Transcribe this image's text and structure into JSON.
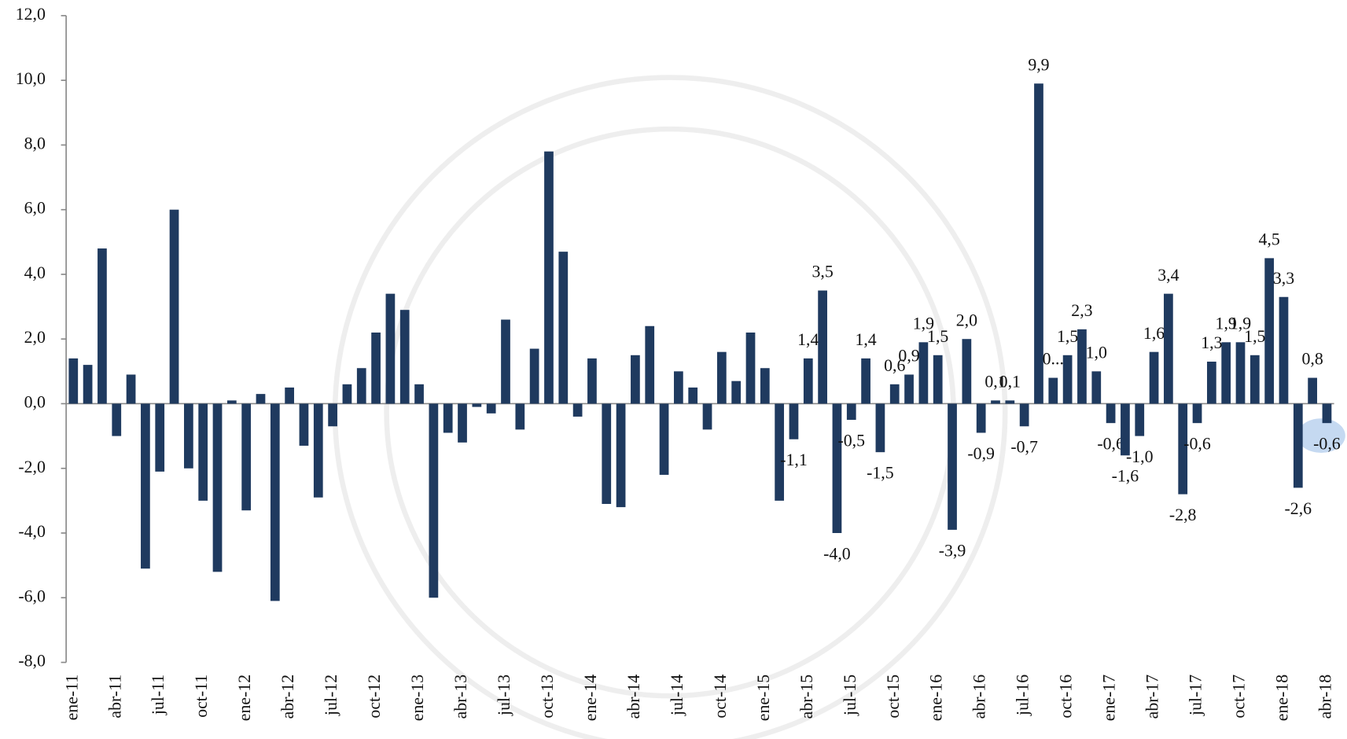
{
  "chart_data": {
    "type": "bar",
    "color": "#1f3a5f",
    "categories": [
      "ene-11",
      null,
      null,
      "abr-11",
      null,
      null,
      "jul-11",
      null,
      null,
      "oct-11",
      null,
      null,
      "ene-12",
      null,
      null,
      "abr-12",
      null,
      null,
      "jul-12",
      null,
      null,
      "oct-12",
      null,
      null,
      "ene-13",
      null,
      null,
      "abr-13",
      null,
      null,
      "jul-13",
      null,
      null,
      "oct-13",
      null,
      null,
      "ene-14",
      null,
      null,
      "abr-14",
      null,
      null,
      "jul-14",
      null,
      null,
      "oct-14",
      null,
      null,
      "ene-15",
      null,
      null,
      "abr-15",
      null,
      null,
      "jul-15",
      null,
      null,
      "oct-15",
      null,
      null,
      "ene-16",
      null,
      null,
      "abr-16",
      null,
      null,
      "jul-16",
      null,
      null,
      "oct-16",
      null,
      null,
      "ene-17",
      null,
      null,
      "abr-17",
      null,
      null,
      "jul-17",
      null,
      null,
      "oct-17",
      null,
      null,
      "ene-18",
      null,
      null,
      "abr-18"
    ],
    "values": [
      1.4,
      1.2,
      4.8,
      -1.0,
      0.9,
      -5.1,
      -2.1,
      6.0,
      -2.0,
      -3.0,
      -5.2,
      0.1,
      -3.3,
      0.3,
      -6.1,
      0.5,
      -1.3,
      -2.9,
      -0.7,
      0.6,
      1.1,
      2.2,
      3.4,
      2.9,
      0.6,
      -6.0,
      -0.9,
      -1.2,
      -0.1,
      -0.3,
      2.6,
      -0.8,
      1.7,
      7.8,
      4.7,
      -0.4,
      1.4,
      -3.1,
      -3.2,
      1.5,
      2.4,
      -2.2,
      1.0,
      0.5,
      -0.8,
      1.6,
      0.7,
      2.2,
      1.1,
      -3.0,
      -1.1,
      1.4,
      3.5,
      -4.0,
      -0.5,
      1.4,
      -1.5,
      0.6,
      0.9,
      1.9,
      1.5,
      -3.9,
      2.0,
      -0.9,
      0.1,
      0.1,
      -0.7,
      9.9,
      0.8,
      1.5,
      2.3,
      1.0,
      -0.6,
      -1.6,
      -1.0,
      1.6,
      3.4,
      -2.8,
      -0.6,
      1.3,
      1.9,
      1.9,
      1.5,
      4.5,
      3.3,
      -2.6,
      0.8,
      -0.6
    ],
    "value_labels": [
      null,
      null,
      null,
      null,
      null,
      null,
      null,
      null,
      null,
      null,
      null,
      null,
      null,
      null,
      null,
      null,
      null,
      null,
      null,
      null,
      null,
      null,
      null,
      null,
      null,
      null,
      null,
      null,
      null,
      null,
      null,
      null,
      null,
      null,
      null,
      null,
      null,
      null,
      null,
      null,
      null,
      null,
      null,
      null,
      null,
      null,
      null,
      null,
      null,
      null,
      "-1,1",
      "1,4",
      "3,5",
      "-4,0",
      "-0,5",
      "1,4",
      "-1,5",
      "0,6",
      "0,9",
      "1,9",
      "1,5",
      "-3,9",
      "2,0",
      "-0,9",
      "0,1",
      "0,1",
      "-0,7",
      "9,9",
      "0...",
      "1,5",
      "2,3",
      "1,0",
      "-0,6",
      "-1,6",
      "-1,0",
      "1,6",
      "3,4",
      "-2,8",
      "-0,6",
      "1,3",
      "1,9",
      "1,9",
      "1,5",
      "4,5",
      "3,3",
      "-2,6",
      "0,8",
      "-0,6"
    ],
    "ylim": [
      -8,
      12
    ],
    "yticks": [
      {
        "value": -8,
        "label": "-8,0"
      },
      {
        "value": -6,
        "label": "-6,0"
      },
      {
        "value": -4,
        "label": "-4,0"
      },
      {
        "value": -2,
        "label": "-2,0"
      },
      {
        "value": 0,
        "label": "0,0"
      },
      {
        "value": 2,
        "label": "2,0"
      },
      {
        "value": 4,
        "label": "4,0"
      },
      {
        "value": 6,
        "label": "6,0"
      },
      {
        "value": 8,
        "label": "8,0"
      },
      {
        "value": 10,
        "label": "10,0"
      },
      {
        "value": 12,
        "label": "12,0"
      }
    ],
    "grid": false
  }
}
